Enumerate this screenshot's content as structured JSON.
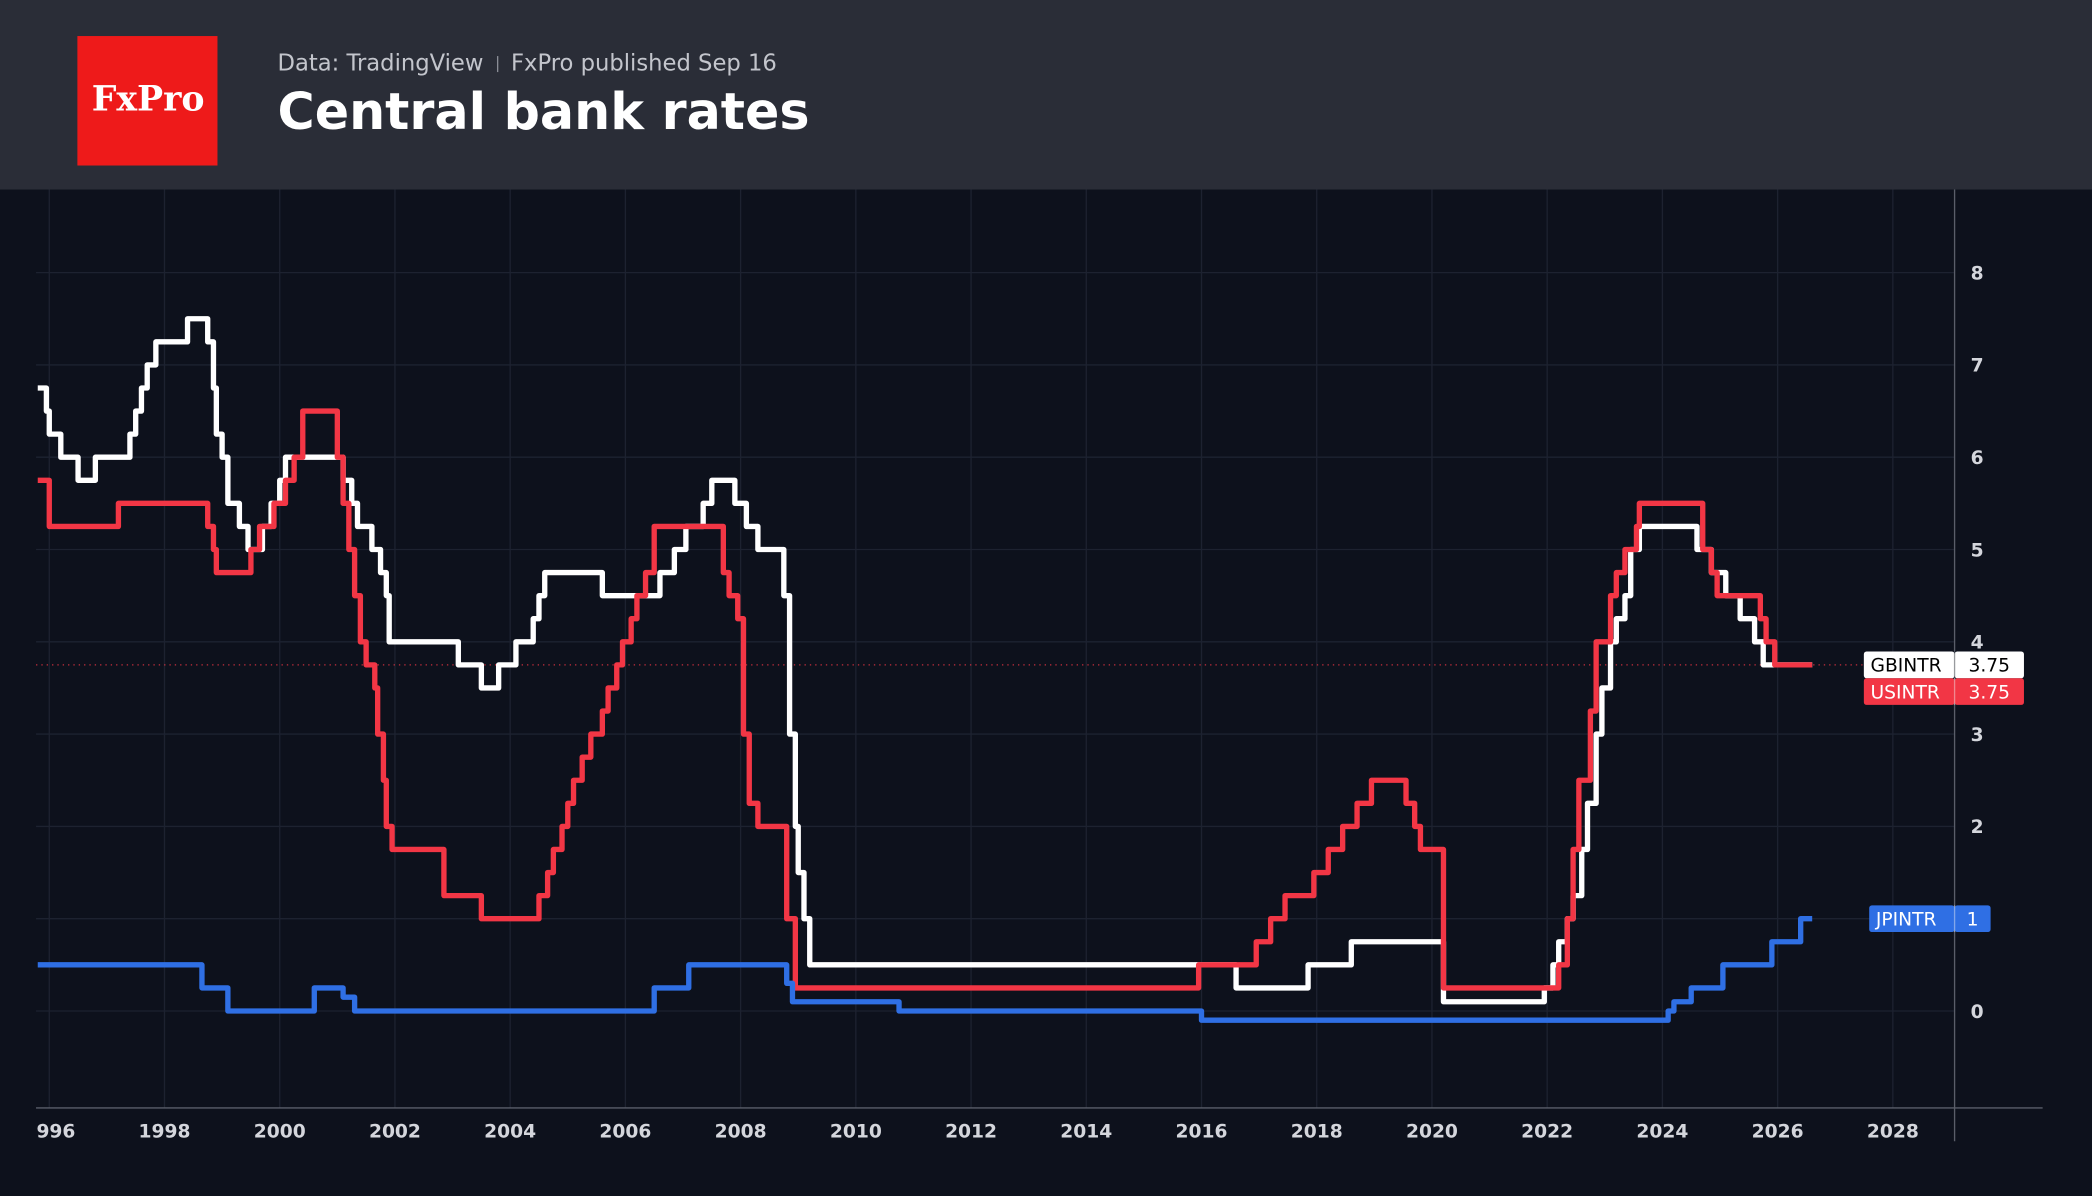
{
  "header": {
    "logo": "FxPro",
    "source": "Data: TradingView",
    "published": "FxPro published Sep 16"
  },
  "chart_data": {
    "type": "line",
    "step": "after",
    "title": "Central bank rates",
    "xlim": [
      1995.77,
      2030.6
    ],
    "ylim": [
      -1.05,
      8.9
    ],
    "xticks": [
      {
        "value": 1996,
        "label": "996"
      },
      1998,
      2000,
      2002,
      2004,
      2006,
      2008,
      2010,
      2012,
      2014,
      2016,
      2018,
      2020,
      2022,
      2024,
      2026,
      2028
    ],
    "yticks": [
      0,
      1,
      2,
      3,
      4,
      5,
      6,
      7,
      8
    ],
    "grid": true,
    "price_line_series": 1,
    "series": [
      {
        "name": "GBINTR",
        "color": "#ffffff",
        "x": [
          1995.8,
          1995.95,
          1996.0,
          1996.2,
          1996.5,
          1996.8,
          1997.4,
          1997.5,
          1997.6,
          1997.7,
          1997.85,
          1998.4,
          1998.75,
          1998.85,
          1998.9,
          1999.0,
          1999.1,
          1999.3,
          1999.45,
          1999.7,
          1999.85,
          2000.0,
          2000.1,
          2001.1,
          2001.25,
          2001.35,
          2001.6,
          2001.75,
          2001.85,
          2001.9,
          2003.1,
          2003.5,
          2003.8,
          2004.1,
          2004.4,
          2004.5,
          2004.6,
          2005.6,
          2006.6,
          2006.85,
          2007.05,
          2007.35,
          2007.5,
          2007.9,
          2008.1,
          2008.3,
          2008.75,
          2008.85,
          2008.95,
          2009.0,
          2009.1,
          2009.2,
          2016.6,
          2017.85,
          2018.6,
          2020.2,
          2021.95,
          2022.1,
          2022.2,
          2022.35,
          2022.45,
          2022.6,
          2022.7,
          2022.85,
          2022.95,
          2023.1,
          2023.2,
          2023.35,
          2023.45,
          2023.6,
          2024.6,
          2024.85,
          2025.1,
          2025.35,
          2025.6,
          2025.75,
          2026.6
        ],
        "values": [
          6.75,
          6.5,
          6.25,
          6.0,
          5.75,
          6.0,
          6.25,
          6.5,
          6.75,
          7.0,
          7.25,
          7.5,
          7.25,
          6.75,
          6.25,
          6.0,
          5.5,
          5.25,
          5.0,
          5.25,
          5.5,
          5.75,
          6.0,
          5.75,
          5.5,
          5.25,
          5.0,
          4.75,
          4.5,
          4.0,
          3.75,
          3.5,
          3.75,
          4.0,
          4.25,
          4.5,
          4.75,
          4.5,
          4.75,
          5.0,
          5.25,
          5.5,
          5.75,
          5.5,
          5.25,
          5.0,
          4.5,
          3.0,
          2.0,
          1.5,
          1.0,
          0.5,
          0.25,
          0.5,
          0.75,
          0.1,
          0.25,
          0.5,
          0.75,
          1.0,
          1.25,
          1.75,
          2.25,
          3.0,
          3.5,
          4.0,
          4.25,
          4.5,
          5.0,
          5.25,
          5.0,
          4.75,
          4.5,
          4.25,
          4.0,
          3.75,
          3.75
        ]
      },
      {
        "name": "USINTR",
        "color": "#f23645",
        "x": [
          1995.8,
          1996.0,
          1997.2,
          1998.75,
          1998.85,
          1998.9,
          1999.5,
          1999.65,
          1999.9,
          2000.1,
          2000.25,
          2000.4,
          2001.0,
          2001.1,
          2001.2,
          2001.3,
          2001.4,
          2001.5,
          2001.65,
          2001.7,
          2001.8,
          2001.85,
          2001.95,
          2002.85,
          2003.5,
          2004.5,
          2004.65,
          2004.75,
          2004.9,
          2005.0,
          2005.1,
          2005.25,
          2005.4,
          2005.6,
          2005.7,
          2005.85,
          2005.95,
          2006.1,
          2006.2,
          2006.35,
          2006.5,
          2007.7,
          2007.8,
          2007.95,
          2008.05,
          2008.15,
          2008.3,
          2008.8,
          2008.95,
          2015.95,
          2016.95,
          2017.2,
          2017.45,
          2017.95,
          2018.2,
          2018.45,
          2018.7,
          2018.95,
          2019.55,
          2019.7,
          2019.8,
          2020.2,
          2022.2,
          2022.35,
          2022.45,
          2022.55,
          2022.75,
          2022.85,
          2023.1,
          2023.2,
          2023.35,
          2023.55,
          2023.6,
          2024.7,
          2024.85,
          2024.95,
          2025.7,
          2025.8,
          2025.95,
          2026.6
        ],
        "values": [
          5.75,
          5.25,
          5.5,
          5.25,
          5.0,
          4.75,
          5.0,
          5.25,
          5.5,
          5.75,
          6.0,
          6.5,
          6.0,
          5.5,
          5.0,
          4.5,
          4.0,
          3.75,
          3.5,
          3.0,
          2.5,
          2.0,
          1.75,
          1.25,
          1.0,
          1.25,
          1.5,
          1.75,
          2.0,
          2.25,
          2.5,
          2.75,
          3.0,
          3.25,
          3.5,
          3.75,
          4.0,
          4.25,
          4.5,
          4.75,
          5.25,
          4.75,
          4.5,
          4.25,
          3.0,
          2.25,
          2.0,
          1.0,
          0.25,
          0.5,
          0.75,
          1.0,
          1.25,
          1.5,
          1.75,
          2.0,
          2.25,
          2.5,
          2.25,
          2.0,
          1.75,
          0.25,
          0.5,
          1.0,
          1.75,
          2.5,
          3.25,
          4.0,
          4.5,
          4.75,
          5.0,
          5.25,
          5.5,
          5.0,
          4.75,
          4.5,
          4.25,
          4.0,
          3.75,
          3.75
        ]
      },
      {
        "name": "JPINTR",
        "color": "#2f6fe4",
        "x": [
          1995.8,
          1998.65,
          1999.1,
          2000.6,
          2001.1,
          2001.3,
          2006.5,
          2007.1,
          2008.8,
          2008.9,
          2010.75,
          2016.0,
          2024.1,
          2024.2,
          2024.5,
          2025.05,
          2025.9,
          2026.4,
          2026.6
        ],
        "values": [
          0.5,
          0.25,
          0.0,
          0.25,
          0.15,
          0.0,
          0.25,
          0.5,
          0.3,
          0.1,
          0.0,
          -0.1,
          0.0,
          0.1,
          0.25,
          0.5,
          0.75,
          1.0,
          1.0
        ]
      }
    ]
  }
}
